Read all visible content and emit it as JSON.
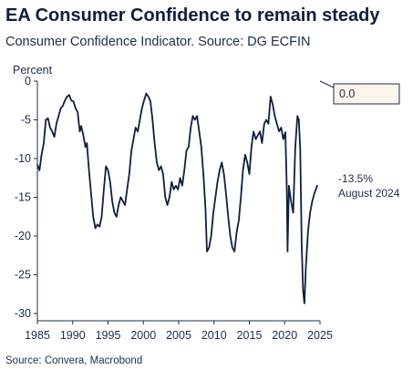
{
  "header": {
    "title": "EA Consumer Confidence to remain steady",
    "subtitle": "Consumer Confidence Indicator. Source: DG ECFIN"
  },
  "footer": {
    "source": "Source: Convera, Macrobond"
  },
  "colors": {
    "line": "#0e1f3d",
    "callout_fill": "#fdf4ec",
    "axis": "#1d2d4a"
  },
  "chart_data": {
    "type": "line",
    "ylabel": "Percent",
    "xlim": [
      1985,
      2025
    ],
    "ylim": [
      -30,
      0
    ],
    "xticks": [
      1985,
      1990,
      1995,
      2000,
      2005,
      2010,
      2015,
      2020,
      2025
    ],
    "yticks": [
      0,
      -5,
      -10,
      -15,
      -20,
      -25,
      -30
    ],
    "grid": false,
    "series": [
      {
        "x": [
          1985.0,
          1985.3,
          1985.6,
          1985.9,
          1986.2,
          1986.5,
          1986.8,
          1987.1,
          1987.4,
          1987.7,
          1988.0,
          1988.3,
          1988.6,
          1988.9,
          1989.2,
          1989.5,
          1989.8,
          1990.1,
          1990.4,
          1990.7,
          1991.0,
          1991.2,
          1991.5,
          1991.8,
          1992.0,
          1992.3,
          1992.6,
          1992.9,
          1993.2,
          1993.5,
          1993.8,
          1994.1,
          1994.4,
          1994.7,
          1995.0,
          1995.3,
          1995.6,
          1995.9,
          1996.2,
          1996.5,
          1996.8,
          1997.1,
          1997.4,
          1997.7,
          1998.0,
          1998.3,
          1998.6,
          1998.9,
          1999.2,
          1999.5,
          1999.8,
          2000.1,
          2000.4,
          2000.7,
          2001.0,
          2001.3,
          2001.6,
          2001.9,
          2002.2,
          2002.5,
          2002.8,
          2003.1,
          2003.4,
          2003.7,
          2004.0,
          2004.3,
          2004.6,
          2004.9,
          2005.2,
          2005.5,
          2005.8,
          2006.1,
          2006.4,
          2006.7,
          2007.0,
          2007.3,
          2007.6,
          2007.9,
          2008.2,
          2008.5,
          2008.8,
          2009.0,
          2009.3,
          2009.6,
          2009.9,
          2010.2,
          2010.5,
          2010.8,
          2011.1,
          2011.4,
          2011.7,
          2012.0,
          2012.3,
          2012.6,
          2012.9,
          2013.2,
          2013.5,
          2013.8,
          2014.1,
          2014.4,
          2014.7,
          2015.0,
          2015.3,
          2015.6,
          2015.9,
          2016.2,
          2016.5,
          2016.8,
          2017.1,
          2017.4,
          2017.7,
          2018.0,
          2018.3,
          2018.6,
          2018.9,
          2019.2,
          2019.5,
          2019.8,
          2020.1,
          2020.3,
          2020.4,
          2020.6,
          2020.9,
          2021.2,
          2021.5,
          2021.8,
          2022.0,
          2022.2,
          2022.4,
          2022.6,
          2022.8,
          2023.0,
          2023.3,
          2023.6,
          2023.9,
          2024.2,
          2024.4,
          2024.6
        ],
        "y": [
          -10.8,
          -11.5,
          -9.5,
          -8.0,
          -5.0,
          -4.8,
          -6.0,
          -6.5,
          -7.2,
          -5.5,
          -4.5,
          -3.5,
          -3.2,
          -2.5,
          -2.0,
          -1.8,
          -2.5,
          -2.6,
          -3.5,
          -4.0,
          -6.5,
          -5.8,
          -7.0,
          -8.5,
          -8.0,
          -11.5,
          -14.5,
          -17.5,
          -19.0,
          -18.5,
          -18.8,
          -17.5,
          -14.0,
          -11.0,
          -11.5,
          -13.0,
          -15.5,
          -17.0,
          -17.5,
          -16.0,
          -15.0,
          -15.5,
          -16.0,
          -14.0,
          -12.0,
          -9.0,
          -7.5,
          -6.0,
          -6.5,
          -5.0,
          -3.5,
          -2.5,
          -1.6,
          -2.0,
          -2.6,
          -5.0,
          -8.0,
          -10.5,
          -11.5,
          -11.0,
          -12.0,
          -15.0,
          -16.0,
          -15.0,
          -13.0,
          -14.0,
          -13.5,
          -14.0,
          -12.5,
          -13.5,
          -11.5,
          -9.0,
          -8.5,
          -6.0,
          -4.5,
          -5.0,
          -4.5,
          -6.5,
          -8.5,
          -12.0,
          -16.5,
          -22.0,
          -21.5,
          -20.0,
          -17.0,
          -15.0,
          -13.0,
          -11.5,
          -10.5,
          -12.0,
          -14.5,
          -17.5,
          -20.0,
          -21.5,
          -22.0,
          -19.5,
          -18.0,
          -15.0,
          -11.5,
          -9.5,
          -10.5,
          -12.0,
          -8.5,
          -6.5,
          -7.5,
          -7.0,
          -6.5,
          -8.0,
          -5.5,
          -5.0,
          -5.5,
          -2.0,
          -3.0,
          -4.5,
          -5.5,
          -6.5,
          -6.0,
          -7.5,
          -6.6,
          -14.0,
          -22.0,
          -13.5,
          -15.5,
          -17.0,
          -8.5,
          -4.5,
          -5.0,
          -8.8,
          -21.0,
          -27.0,
          -28.7,
          -24.0,
          -19.5,
          -17.0,
          -15.5,
          -14.5,
          -14.0,
          -13.5
        ]
      }
    ],
    "annotations": {
      "callout_value": "0.0",
      "end_value": "-13.5%",
      "end_date": "August 2024"
    }
  }
}
